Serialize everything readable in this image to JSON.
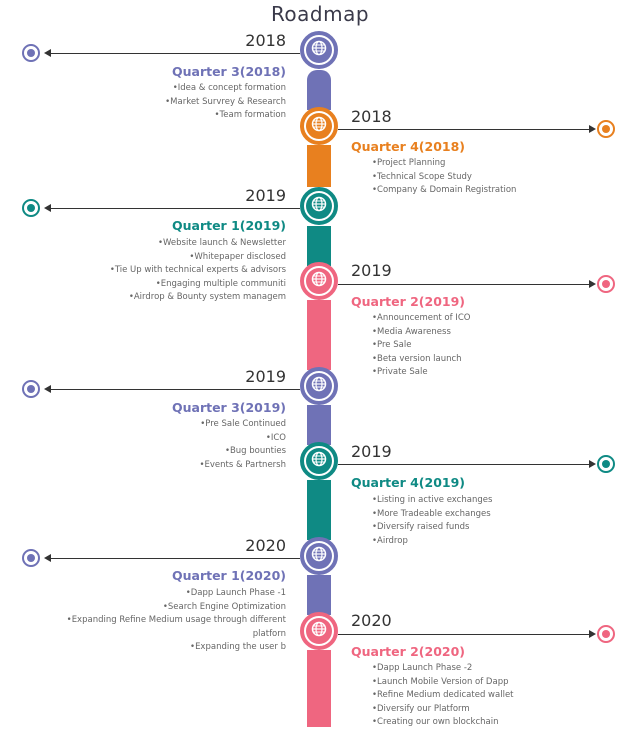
{
  "title": "Roadmap",
  "colors": {
    "purple": "#6f72b6",
    "orange": "#e8801f",
    "teal": "#0f8a84",
    "pink": "#ef6680"
  },
  "milestones": [
    {
      "year": "2018",
      "quarter": "Quarter 3(2018)",
      "color": "#6f72b6",
      "items": [
        "Idea & concept formation",
        "Market Survrey & Research",
        "Team formation"
      ]
    },
    {
      "year": "2018",
      "quarter": "Quarter 4(2018)",
      "color": "#e8801f",
      "items": [
        "Project Planning",
        "Technical Scope Study",
        "Company & Domain Registration"
      ]
    },
    {
      "year": "2019",
      "quarter": "Quarter 1(2019)",
      "color": "#0f8a84",
      "items": [
        "Website launch & Newsletter",
        "Whitepaper disclosed",
        "Tie Up with technical experts & advisors",
        "Engaging multiple communiti",
        "Airdrop & Bounty system managem"
      ]
    },
    {
      "year": "2019",
      "quarter": "Quarter 2(2019)",
      "color": "#ef6680",
      "items": [
        "Announcement of ICO",
        "Media Awareness",
        "Pre Sale",
        "Beta version launch",
        "Private Sale"
      ]
    },
    {
      "year": "2019",
      "quarter": "Quarter 3(2019)",
      "color": "#6f72b6",
      "items": [
        "Pre Sale Continued",
        "ICO",
        "Bug bounties",
        "Events & Partnersh"
      ]
    },
    {
      "year": "2019",
      "quarter": "Quarter 4(2019)",
      "color": "#0f8a84",
      "items": [
        "Listing in active exchanges",
        "More Tradeable exchanges",
        "Diversify raised funds",
        "Airdrop"
      ]
    },
    {
      "year": "2020",
      "quarter": "Quarter 1(2020)",
      "color": "#6f72b6",
      "items": [
        "Dapp Launch Phase -1",
        "Search Engine Optimization",
        "Expanding Refine Medium usage through different",
        "platforn",
        "Expanding the user b"
      ]
    },
    {
      "year": "2020",
      "quarter": "Quarter 2(2020)",
      "color": "#ef6680",
      "items": [
        "Dapp Launch Phase -2",
        "Launch Mobile Version of Dapp",
        "Refine Medium dedicated wallet",
        "Diversify our Platform",
        "Creating our own blockchain"
      ]
    }
  ]
}
